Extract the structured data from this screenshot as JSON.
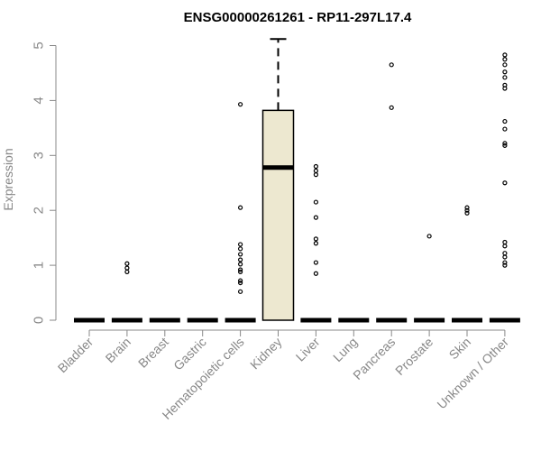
{
  "chart_data": {
    "type": "box",
    "title": "ENSG00000261261 - RP11-297L17.4",
    "xlabel": "",
    "ylabel": "Expression",
    "ylim": [
      0,
      5.15
    ],
    "yticks": [
      0,
      1,
      2,
      3,
      4,
      5
    ],
    "grid": false,
    "legend": "none",
    "box_fill": "#ede8d0",
    "categories": [
      "Bladder",
      "Brain",
      "Breast",
      "Gastric",
      "Hematopoietic cells",
      "Kidney",
      "Liver",
      "Lung",
      "Pancreas",
      "Prostate",
      "Skin",
      "Unknown / Other"
    ],
    "boxes": [
      {
        "category": "Bladder",
        "q1": 0,
        "median": 0,
        "q3": 0,
        "whisker_low": 0,
        "whisker_high": 0,
        "outliers": []
      },
      {
        "category": "Brain",
        "q1": 0,
        "median": 0,
        "q3": 0,
        "whisker_low": 0,
        "whisker_high": 0,
        "outliers": [
          0.88,
          0.95,
          1.03
        ]
      },
      {
        "category": "Breast",
        "q1": 0,
        "median": 0,
        "q3": 0,
        "whisker_low": 0,
        "whisker_high": 0,
        "outliers": []
      },
      {
        "category": "Gastric",
        "q1": 0,
        "median": 0,
        "q3": 0,
        "whisker_low": 0,
        "whisker_high": 0,
        "outliers": []
      },
      {
        "category": "Hematopoietic cells",
        "q1": 0,
        "median": 0,
        "q3": 0,
        "whisker_low": 0,
        "whisker_high": 0,
        "outliers": [
          0.52,
          0.68,
          0.72,
          0.88,
          0.92,
          1.02,
          1.1,
          1.2,
          1.3,
          1.38,
          2.05,
          3.93
        ]
      },
      {
        "category": "Kidney",
        "q1": 0,
        "median": 2.78,
        "q3": 3.82,
        "whisker_low": 0,
        "whisker_high": 5.12,
        "outliers": []
      },
      {
        "category": "Liver",
        "q1": 0,
        "median": 0,
        "q3": 0,
        "whisker_low": 0,
        "whisker_high": 0,
        "outliers": [
          0.85,
          1.05,
          1.4,
          1.48,
          1.87,
          2.15,
          2.65,
          2.72,
          2.8
        ]
      },
      {
        "category": "Lung",
        "q1": 0,
        "median": 0,
        "q3": 0,
        "whisker_low": 0,
        "whisker_high": 0,
        "outliers": []
      },
      {
        "category": "Pancreas",
        "q1": 0,
        "median": 0,
        "q3": 0,
        "whisker_low": 0,
        "whisker_high": 0,
        "outliers": [
          3.87,
          4.65
        ]
      },
      {
        "category": "Prostate",
        "q1": 0,
        "median": 0,
        "q3": 0,
        "whisker_low": 0,
        "whisker_high": 0,
        "outliers": [
          1.53
        ]
      },
      {
        "category": "Skin",
        "q1": 0,
        "median": 0,
        "q3": 0,
        "whisker_low": 0,
        "whisker_high": 0,
        "outliers": [
          1.95,
          2.0,
          2.05
        ]
      },
      {
        "category": "Unknown / Other",
        "q1": 0,
        "median": 0,
        "q3": 0,
        "whisker_low": 0,
        "whisker_high": 0,
        "outliers": [
          1.0,
          1.05,
          1.15,
          1.22,
          1.35,
          1.42,
          2.5,
          3.18,
          3.22,
          3.48,
          3.62,
          4.22,
          4.28,
          4.42,
          4.52,
          4.65,
          4.75,
          4.83
        ]
      }
    ]
  }
}
